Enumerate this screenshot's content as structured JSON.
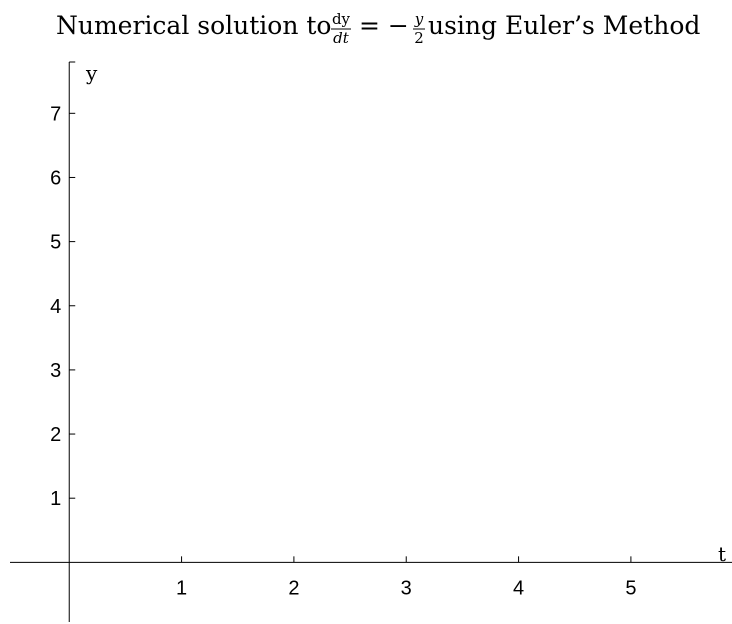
{
  "chart_data": {
    "type": "line",
    "title": "Numerical solution to dy/dt = −y/2 using Euler's Method",
    "title_parts": {
      "prefix": "Numerical solution to ",
      "frac1_num": "dy",
      "frac1_den": "dt",
      "eq": "= −",
      "frac2_num": "y",
      "frac2_den": "2",
      "suffix": " using Euler’s Method"
    },
    "xlabel": "t",
    "ylabel": "y",
    "xlim": [
      -0.1,
      5.9
    ],
    "ylim": [
      -0.4,
      7.8
    ],
    "x_ticks": [
      1,
      2,
      3,
      4,
      5
    ],
    "y_ticks": [
      1,
      2,
      3,
      4,
      5,
      6,
      7
    ],
    "x_tick_labels": [
      "1",
      "2",
      "3",
      "4",
      "5"
    ],
    "y_tick_labels": [
      "1",
      "2",
      "3",
      "4",
      "5",
      "6",
      "7"
    ],
    "series": [],
    "grid": false
  }
}
